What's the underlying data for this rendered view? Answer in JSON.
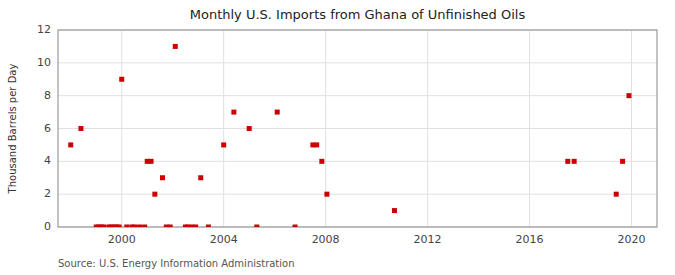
{
  "chart_data": {
    "type": "scatter",
    "title": "Monthly U.S. Imports from Ghana of Unfinished Oils",
    "ylabel": "Thousand Barrels per Day",
    "annotations": [
      "Source: U.S. Energy Information Administration"
    ],
    "color": "#cc0000",
    "marker": "square",
    "grid": true,
    "xlim": [
      1997.5,
      2021
    ],
    "ylim": [
      0,
      12
    ],
    "xticks": [
      2000,
      2004,
      2008,
      2012,
      2016,
      2020
    ],
    "yticks": [
      0,
      2,
      4,
      6,
      8,
      10,
      12
    ],
    "x": [
      1998.0,
      1998.4,
      1999.0,
      1999.1,
      1999.2,
      1999.3,
      1999.5,
      1999.6,
      1999.7,
      1999.8,
      1999.9,
      2000.0,
      2000.2,
      2000.4,
      2000.5,
      2000.7,
      2000.9,
      2001.0,
      2001.15,
      2001.3,
      2001.6,
      2001.75,
      2001.9,
      2002.1,
      2002.5,
      2002.6,
      2002.75,
      2002.9,
      2003.1,
      2003.4,
      2004.0,
      2004.4,
      2005.0,
      2005.3,
      2006.1,
      2006.8,
      2007.5,
      2007.65,
      2007.85,
      2008.05,
      2010.7,
      2017.5,
      2017.75,
      2019.4,
      2019.65,
      2019.9
    ],
    "values": [
      5,
      6,
      0,
      0,
      0,
      0,
      0,
      0,
      0,
      0,
      0,
      9,
      0,
      0,
      0,
      0,
      0,
      4,
      4,
      2,
      3,
      0,
      0,
      11,
      0,
      0,
      0,
      0,
      3,
      0,
      5,
      7,
      6,
      0,
      7,
      0,
      5,
      5,
      4,
      2,
      1,
      4,
      4,
      2,
      4,
      8
    ]
  }
}
